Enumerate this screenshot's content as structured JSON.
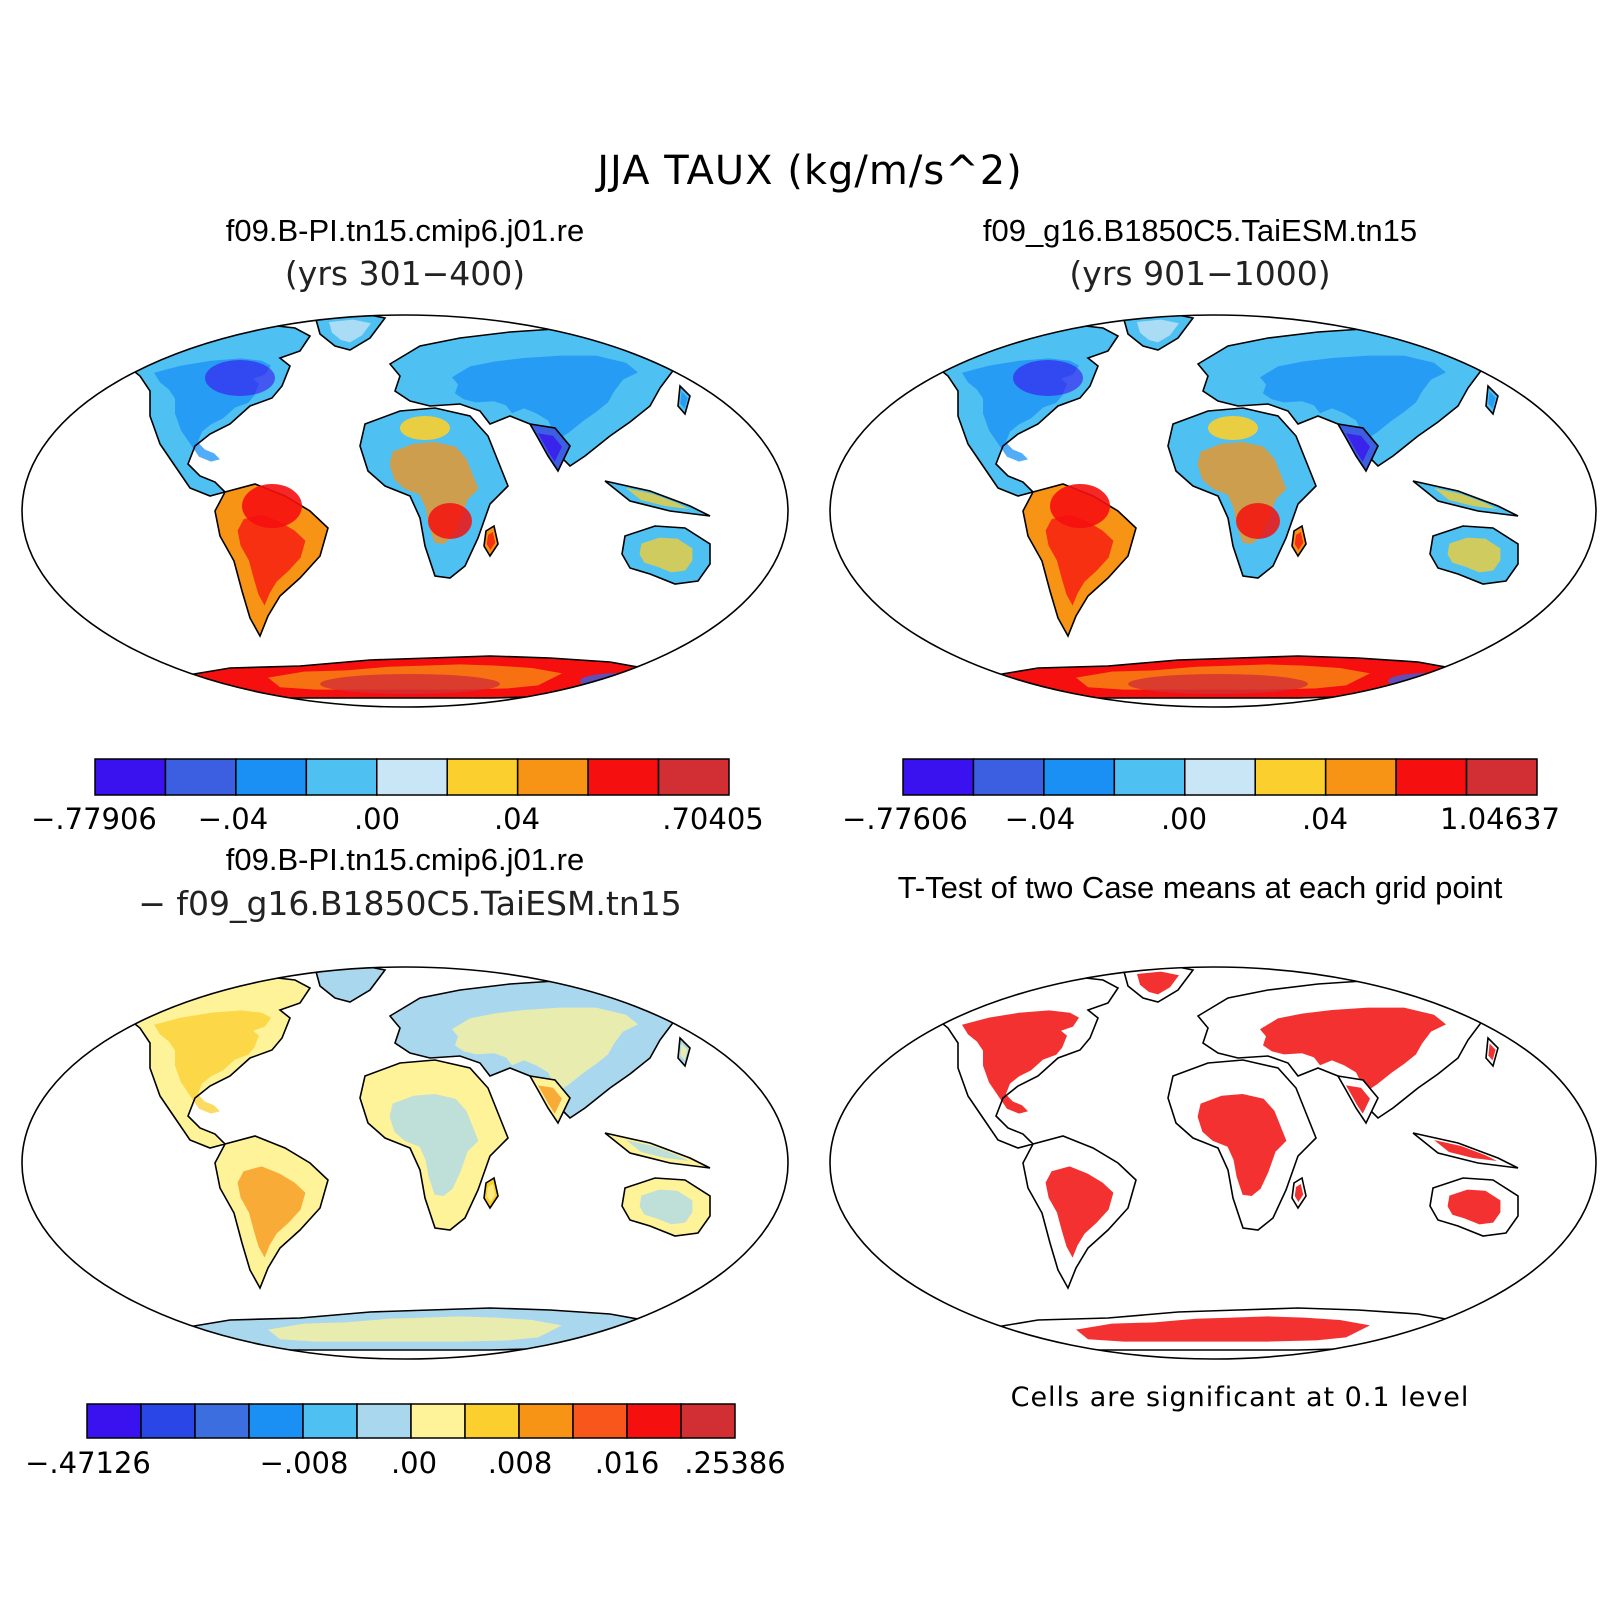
{
  "title": "JJA TAUX (kg/m/s^2)",
  "colors": {
    "blue_dark": "#3a12f0",
    "blue": "#3c5ee0",
    "blue_mid": "#1a90f5",
    "blue_light": "#4fc0f2",
    "blue_pale": "#c8e6f6",
    "pale_blue2": "#a9d8ee",
    "yellow_pale": "#fff39a",
    "yellow": "#fbcf2e",
    "orange": "#f79315",
    "orange_red": "#f8561a",
    "red": "#f50f0f",
    "dark_red": "#d22f34",
    "signif_red": "#f20d0d"
  },
  "panels": [
    {
      "title": "f09.B-PI.tn15.cmip6.j01.re",
      "subtitle": "(yrs 301−400)",
      "colorbar": {
        "colors": [
          "#3a12f0",
          "#3c5ee0",
          "#1a90f5",
          "#4fc0f2",
          "#c8e6f6",
          "#fbcf2e",
          "#f79315",
          "#f50f0f",
          "#d22f34"
        ],
        "ticks": [
          ".77906|−.77906",
          "−.04",
          ".00",
          ".04",
          ".70405"
        ]
      }
    },
    {
      "title": "f09_g16.B1850C5.TaiESM.tn15",
      "subtitle": "(yrs 901−1000)",
      "colorbar": {
        "colors": [
          "#3a12f0",
          "#3c5ee0",
          "#1a90f5",
          "#4fc0f2",
          "#c8e6f6",
          "#fbcf2e",
          "#f79315",
          "#f50f0f",
          "#d22f34"
        ],
        "ticks": [
          "−.77606",
          "−.04",
          ".00",
          ".04",
          "1.04637"
        ]
      }
    },
    {
      "title": "f09.B-PI.tn15.cmip6.j01.re",
      "subtitle": "− f09_g16.B1850C5.TaiESM.tn15",
      "colorbar": {
        "colors": [
          "#3a12f0",
          "#2b46e6",
          "#3c6ee0",
          "#1a90f5",
          "#4fc0f2",
          "#a9d8ee",
          "#fff39a",
          "#fbcf2e",
          "#f79315",
          "#f8561a",
          "#f50f0f",
          "#d22f34"
        ],
        "ticks": [
          "−.47126",
          "−.008",
          ".00",
          ".008",
          ".016",
          ".25386"
        ]
      }
    },
    {
      "title": "T-Test of two Case means at each grid point",
      "note": "Cells are significant at 0.1 level"
    }
  ]
}
